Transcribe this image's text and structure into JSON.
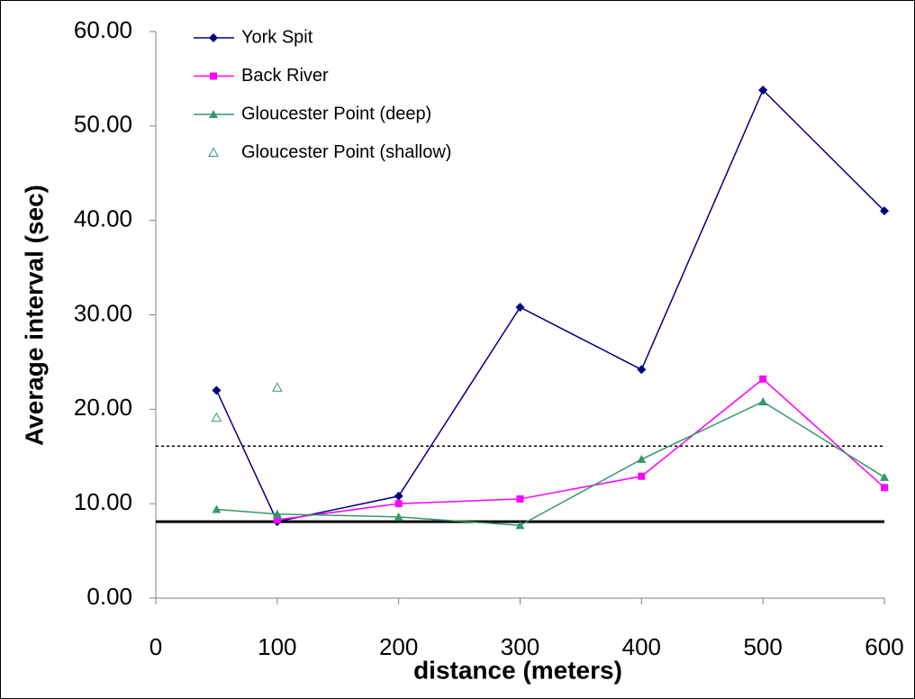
{
  "chart_data": {
    "type": "line",
    "x_label": "distance (meters)",
    "y_label": "Average interval (sec)",
    "x": [
      50,
      100,
      200,
      300,
      400,
      500,
      600
    ],
    "series": [
      {
        "name": "York Spit",
        "color": "#000080",
        "marker": "diamond",
        "line": true,
        "values": [
          22.0,
          8.1,
          10.8,
          30.8,
          24.2,
          53.8,
          41.0
        ]
      },
      {
        "name": "Back River",
        "color": "#ff00ff",
        "marker": "square",
        "line": true,
        "values": [
          null,
          8.3,
          10.0,
          10.5,
          12.9,
          23.2,
          11.7
        ]
      },
      {
        "name": "Gloucester Point (deep)",
        "color": "#339966",
        "marker": "triangle",
        "line": true,
        "values": [
          9.4,
          8.9,
          8.6,
          7.7,
          14.7,
          20.8,
          12.8
        ]
      },
      {
        "name": "Gloucester Point (shallow)",
        "color": "#339966",
        "marker": "open-triangle",
        "line": false,
        "values": [
          19.1,
          22.3,
          null,
          null,
          null,
          null,
          null
        ]
      }
    ],
    "reference_lines": [
      {
        "value": 8.1,
        "style": "solid"
      },
      {
        "value": 16.1,
        "style": "dotted"
      }
    ],
    "xlim": [
      0,
      600
    ],
    "xticks": [
      0,
      100,
      200,
      300,
      400,
      500,
      600
    ],
    "ylim": [
      0,
      60
    ],
    "yticks": [
      {
        "value": 0,
        "label": "0.00"
      },
      {
        "value": 10,
        "label": "10.00"
      },
      {
        "value": 20,
        "label": "20.00"
      },
      {
        "value": 30,
        "label": "30.00"
      },
      {
        "value": 40,
        "label": "40.00"
      },
      {
        "value": 50,
        "label": "50.00"
      },
      {
        "value": 60,
        "label": "60.00"
      }
    ],
    "legend": "top-left"
  }
}
